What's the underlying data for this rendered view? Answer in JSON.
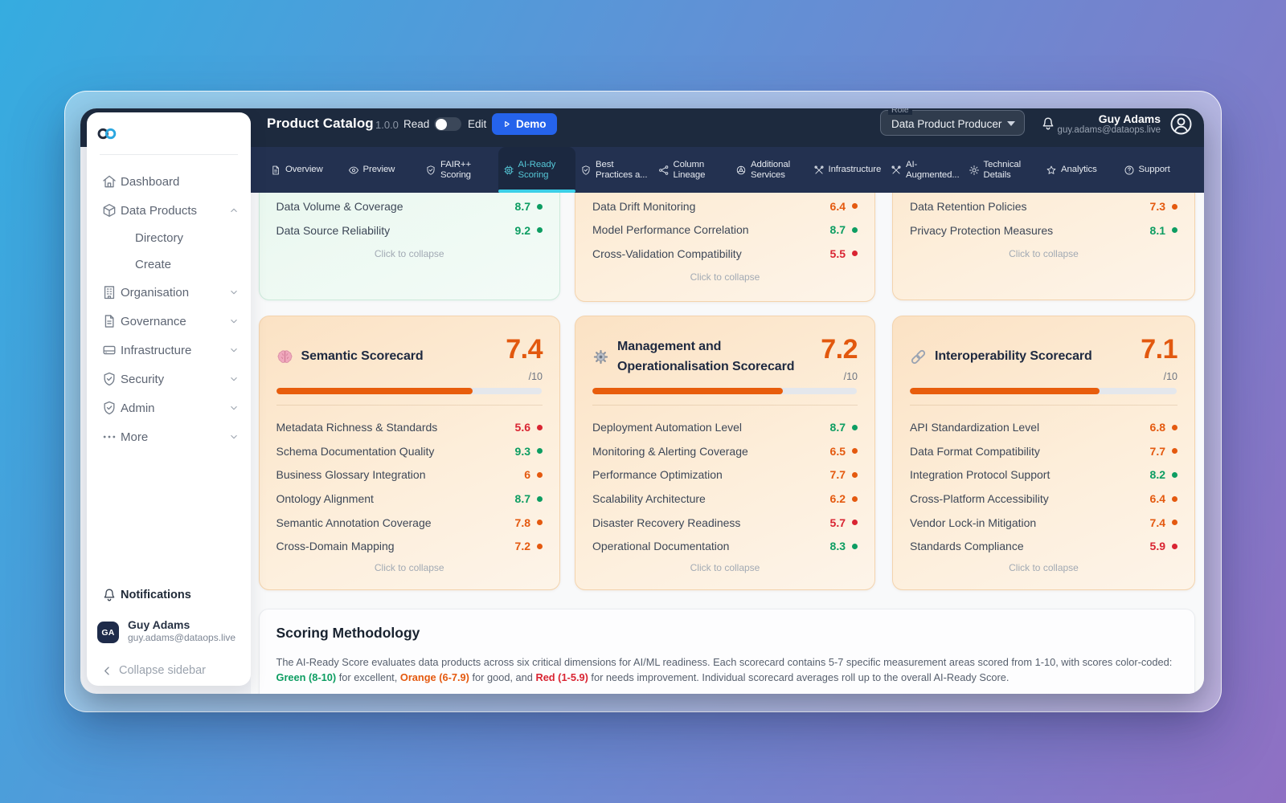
{
  "header": {
    "title": "Product Catalog",
    "version": "1.0.0",
    "read_label": "Read",
    "edit_label": "Edit",
    "demo_label": "Demo",
    "role_label": "Role",
    "role_value": "Data Product Producer",
    "user_name": "Guy Adams",
    "user_email": "guy.adams@dataops.live"
  },
  "tabs": [
    {
      "line1": "Overview",
      "line2": "",
      "icon": "document",
      "active": false
    },
    {
      "line1": "Preview",
      "line2": "",
      "icon": "eye",
      "active": false
    },
    {
      "line1": "FAIR++",
      "line2": "Scoring",
      "icon": "shield-check",
      "active": false
    },
    {
      "line1": "AI-Ready",
      "line2": "Scoring",
      "icon": "chip",
      "active": true
    },
    {
      "line1": "Best",
      "line2": "Practices a...",
      "icon": "shield-check",
      "active": false
    },
    {
      "line1": "Column",
      "line2": "Lineage",
      "icon": "lineage",
      "active": false
    },
    {
      "line1": "Additional",
      "line2": "Services",
      "icon": "services",
      "active": false
    },
    {
      "line1": "Infrastructure",
      "line2": "",
      "icon": "tools",
      "active": false
    },
    {
      "line1": "AI-",
      "line2": "Augmented...",
      "icon": "tools",
      "active": false
    },
    {
      "line1": "Technical",
      "line2": "Details",
      "icon": "gear",
      "active": false
    },
    {
      "line1": "Analytics",
      "line2": "",
      "icon": "star",
      "active": false
    },
    {
      "line1": "Support",
      "line2": "",
      "icon": "question",
      "active": false
    }
  ],
  "sidebar": {
    "items": [
      {
        "label": "Dashboard",
        "icon": "home",
        "chevron": "",
        "sub": false
      },
      {
        "label": "Data Products",
        "icon": "cube",
        "chevron": "up",
        "sub": false
      },
      {
        "label": "Directory",
        "icon": "",
        "chevron": "",
        "sub": true
      },
      {
        "label": "Create",
        "icon": "",
        "chevron": "",
        "sub": true
      },
      {
        "label": "Organisation",
        "icon": "building",
        "chevron": "down",
        "sub": false
      },
      {
        "label": "Governance",
        "icon": "document",
        "chevron": "down",
        "sub": false
      },
      {
        "label": "Infrastructure",
        "icon": "server",
        "chevron": "down",
        "sub": false
      },
      {
        "label": "Security",
        "icon": "shield-check",
        "chevron": "down",
        "sub": false
      },
      {
        "label": "Admin",
        "icon": "shield-check",
        "chevron": "down",
        "sub": false
      },
      {
        "label": "More",
        "icon": "ellipsis",
        "chevron": "down",
        "sub": false
      }
    ],
    "notifications_label": "Notifications",
    "user_initials": "GA",
    "user_name": "Guy Adams",
    "user_email": "guy.adams@dataops.live",
    "collapse_label": "Collapse sidebar"
  },
  "top_cards": [
    {
      "tone": "green",
      "rows": [
        {
          "label": "Data Volume & Coverage",
          "score": "8.7",
          "level": "green"
        },
        {
          "label": "Data Source Reliability",
          "score": "9.2",
          "level": "green"
        }
      ],
      "collapse_label": "Click to collapse"
    },
    {
      "tone": "orange",
      "rows": [
        {
          "label": "Data Drift Monitoring",
          "score": "6.4",
          "level": "orange"
        },
        {
          "label": "Model Performance Correlation",
          "score": "8.7",
          "level": "green"
        },
        {
          "label": "Cross-Validation Compatibility",
          "score": "5.5",
          "level": "red"
        }
      ],
      "collapse_label": "Click to collapse"
    },
    {
      "tone": "orange",
      "rows": [
        {
          "label": "Data Retention Policies",
          "score": "7.3",
          "level": "orange"
        },
        {
          "label": "Privacy Protection Measures",
          "score": "8.1",
          "level": "green"
        }
      ],
      "collapse_label": "Click to collapse"
    }
  ],
  "scorecards": [
    {
      "emoji": "brain",
      "title": "Semantic Scorecard",
      "score": "7.4",
      "denominator": "/10",
      "progress": 7.4,
      "rows": [
        {
          "label": "Metadata Richness & Standards",
          "score": "5.6",
          "level": "red"
        },
        {
          "label": "Schema Documentation Quality",
          "score": "9.3",
          "level": "green"
        },
        {
          "label": "Business Glossary Integration",
          "score": "6",
          "level": "orange"
        },
        {
          "label": "Ontology Alignment",
          "score": "8.7",
          "level": "green"
        },
        {
          "label": "Semantic Annotation Coverage",
          "score": "7.8",
          "level": "orange"
        },
        {
          "label": "Cross-Domain Mapping",
          "score": "7.2",
          "level": "orange"
        }
      ],
      "collapse_label": "Click to collapse"
    },
    {
      "emoji": "gear",
      "title": "Management and Operationalisation Scorecard",
      "score": "7.2",
      "denominator": "/10",
      "progress": 7.2,
      "rows": [
        {
          "label": "Deployment Automation Level",
          "score": "8.7",
          "level": "green"
        },
        {
          "label": "Monitoring & Alerting Coverage",
          "score": "6.5",
          "level": "orange"
        },
        {
          "label": "Performance Optimization",
          "score": "7.7",
          "level": "orange"
        },
        {
          "label": "Scalability Architecture",
          "score": "6.2",
          "level": "orange"
        },
        {
          "label": "Disaster Recovery Readiness",
          "score": "5.7",
          "level": "red"
        },
        {
          "label": "Operational Documentation",
          "score": "8.3",
          "level": "green"
        }
      ],
      "collapse_label": "Click to collapse"
    },
    {
      "emoji": "link",
      "title": "Interoperability Scorecard",
      "score": "7.1",
      "denominator": "/10",
      "progress": 7.1,
      "rows": [
        {
          "label": "API Standardization Level",
          "score": "6.8",
          "level": "orange"
        },
        {
          "label": "Data Format Compatibility",
          "score": "7.7",
          "level": "orange"
        },
        {
          "label": "Integration Protocol Support",
          "score": "8.2",
          "level": "green"
        },
        {
          "label": "Cross-Platform Accessibility",
          "score": "6.4",
          "level": "orange"
        },
        {
          "label": "Vendor Lock-in Mitigation",
          "score": "7.4",
          "level": "orange"
        },
        {
          "label": "Standards Compliance",
          "score": "5.9",
          "level": "red"
        }
      ],
      "collapse_label": "Click to collapse"
    }
  ],
  "methodology": {
    "title": "Scoring Methodology",
    "parts": [
      {
        "text": "The AI-Ready Score evaluates data products across six critical dimensions for AI/ML readiness. Each scorecard contains 5-7 specific measurement areas scored from 1-10, with scores color-coded:",
        "style": "plain",
        "break_after": true
      },
      {
        "text": "Green (8-10)",
        "style": "green",
        "break_after": false
      },
      {
        "text": " for excellent, ",
        "style": "plain",
        "break_after": false
      },
      {
        "text": "Orange (6-7.9)",
        "style": "orange",
        "break_after": false
      },
      {
        "text": " for good, and ",
        "style": "plain",
        "break_after": false
      },
      {
        "text": "Red (1-5.9)",
        "style": "red",
        "break_after": false
      },
      {
        "text": " for needs improvement. Individual scorecard averages roll up to the overall AI-Ready Score.",
        "style": "plain",
        "break_after": false
      }
    ]
  },
  "colors": {
    "navy1": "#1d2a3e",
    "navy2": "#233150",
    "navy3": "#1b2840",
    "teal": "#55c6d6",
    "cyan": "#3bcfe7",
    "blue": "#2563eb",
    "green": "#0d9d62",
    "orange": "#e4590f",
    "red": "#d92432",
    "scoreorange": "#e2580e",
    "fillorange": "#e85d0c"
  }
}
